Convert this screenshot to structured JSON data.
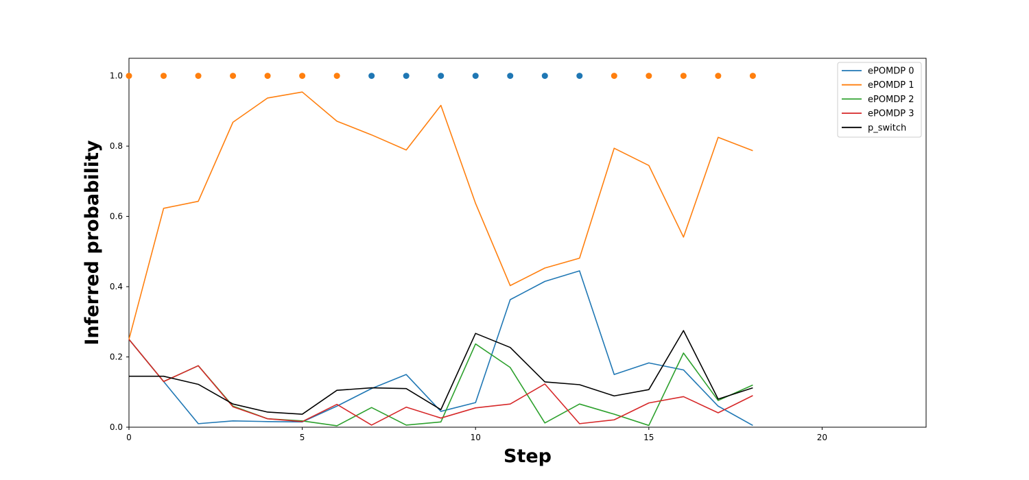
{
  "chart_data": {
    "type": "line",
    "xlabel": "Step",
    "ylabel": "Inferred probability",
    "xlim": [
      0,
      23
    ],
    "ylim": [
      0,
      1.05
    ],
    "xticks": [
      0,
      5,
      10,
      15,
      20
    ],
    "yticks": [
      0.0,
      0.2,
      0.4,
      0.6,
      0.8,
      1.0
    ],
    "tick_precision": {
      "x": 0,
      "y": 1
    },
    "grid": false,
    "legend_position": "top-right",
    "x": [
      0,
      1,
      2,
      3,
      4,
      5,
      6,
      7,
      8,
      9,
      10,
      11,
      12,
      13,
      14,
      15,
      16,
      17,
      18
    ],
    "series": [
      {
        "name": "ePOMDP 0",
        "color": "#1f77b4",
        "values": [
          0.25,
          0.13,
          0.01,
          0.018,
          0.016,
          0.015,
          0.06,
          0.11,
          0.15,
          0.045,
          0.07,
          0.363,
          0.415,
          0.445,
          0.15,
          0.183,
          0.163,
          0.06,
          0.005
        ]
      },
      {
        "name": "ePOMDP 1",
        "color": "#ff7f0e",
        "values": [
          0.25,
          0.623,
          0.643,
          0.868,
          0.937,
          0.954,
          0.871,
          0.832,
          0.789,
          0.916,
          0.637,
          0.403,
          0.453,
          0.481,
          0.794,
          0.745,
          0.541,
          0.825,
          0.787
        ]
      },
      {
        "name": "ePOMDP 2",
        "color": "#2ca02c",
        "values": [
          0.25,
          0.13,
          0.175,
          0.06,
          0.024,
          0.018,
          0.004,
          0.056,
          0.006,
          0.015,
          0.237,
          0.17,
          0.012,
          0.066,
          0.037,
          0.005,
          0.211,
          0.076,
          0.12
        ]
      },
      {
        "name": "ePOMDP 3",
        "color": "#d62728",
        "values": [
          0.25,
          0.13,
          0.175,
          0.058,
          0.024,
          0.016,
          0.065,
          0.006,
          0.057,
          0.026,
          0.055,
          0.066,
          0.123,
          0.01,
          0.021,
          0.069,
          0.087,
          0.041,
          0.09
        ]
      },
      {
        "name": "p_switch",
        "color": "#000000",
        "values": [
          0.145,
          0.145,
          0.122,
          0.066,
          0.043,
          0.037,
          0.105,
          0.112,
          0.11,
          0.05,
          0.267,
          0.227,
          0.129,
          0.121,
          0.089,
          0.107,
          0.275,
          0.08,
          0.112
        ]
      }
    ],
    "markers": {
      "y": 1.0,
      "x": [
        0,
        1,
        2,
        3,
        4,
        5,
        6,
        7,
        8,
        9,
        10,
        11,
        12,
        13,
        14,
        15,
        16,
        17,
        18
      ],
      "series_index": [
        1,
        1,
        1,
        1,
        1,
        1,
        1,
        0,
        0,
        0,
        0,
        0,
        0,
        0,
        1,
        1,
        1,
        1,
        1
      ]
    }
  }
}
